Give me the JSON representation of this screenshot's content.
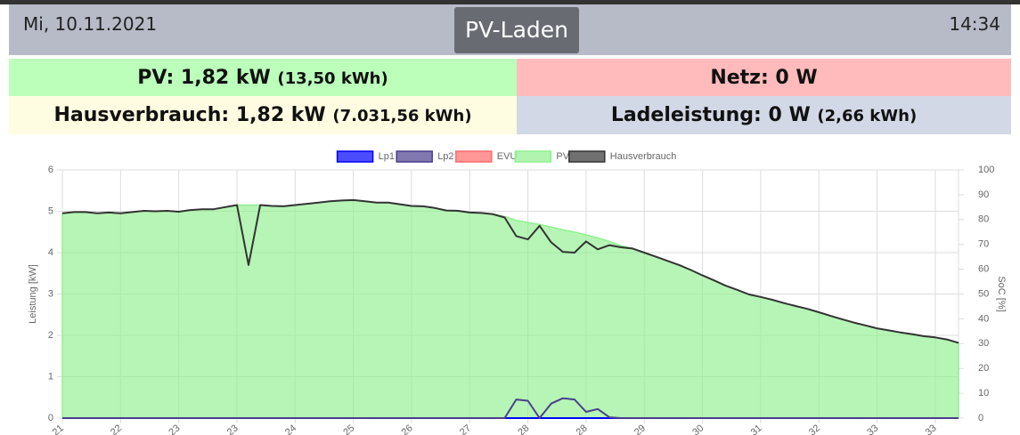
{
  "header": {
    "date": "Mi, 10.11.2021",
    "title": "PV-Laden",
    "time": "14:34"
  },
  "tiles": [
    {
      "label": "PV: 1,82 kW",
      "detail": "(13,50 kWh)",
      "color": "#bbffbb"
    },
    {
      "label": "Netz: 0 W",
      "color": "#ffbbbb"
    },
    {
      "label": "Hausverbrauch: 1,82 kW",
      "detail": "(7.031,56 kWh)",
      "color": "#fffde1"
    },
    {
      "label": "Ladeleistung: 0 W",
      "detail": "(2,66 kWh)",
      "color": "#d2d8e6"
    }
  ],
  "chart_data": {
    "type": "line",
    "y_label": "Leistung [kW]",
    "y2_label": "SoC [%]",
    "ylim": [
      0,
      6
    ],
    "yticks": [
      0,
      1,
      2,
      3,
      4,
      5,
      6
    ],
    "y2lim": [
      0,
      100
    ],
    "y2ticks": [
      0,
      10,
      20,
      30,
      40,
      50,
      60,
      70,
      80,
      90,
      100
    ],
    "grid": true,
    "legend": "top",
    "categories": [
      "21",
      null,
      null,
      null,
      null,
      "22",
      null,
      null,
      null,
      null,
      "23",
      null,
      null,
      null,
      null,
      "23",
      null,
      null,
      null,
      null,
      "24",
      null,
      null,
      null,
      null,
      "25",
      null,
      null,
      null,
      null,
      "26",
      null,
      null,
      null,
      null,
      "27",
      null,
      null,
      null,
      null,
      "28",
      null,
      null,
      null,
      null,
      "28",
      null,
      null,
      null,
      null,
      "29",
      null,
      null,
      null,
      null,
      "30",
      null,
      null,
      null,
      null,
      "31",
      null,
      null,
      null,
      null,
      "32",
      null,
      null,
      null,
      null,
      "33",
      null,
      null,
      null,
      null,
      "33",
      null,
      null
    ],
    "series": [
      {
        "name": "Lp1",
        "color": "#0000ff",
        "values": [
          0,
          0,
          0,
          0,
          0,
          0,
          0,
          0,
          0,
          0,
          0,
          0,
          0,
          0,
          0,
          0,
          0,
          0,
          0,
          0,
          0,
          0,
          0,
          0,
          0,
          0,
          0,
          0,
          0,
          0,
          0,
          0,
          0,
          0,
          0,
          0,
          0,
          0,
          0,
          0,
          0,
          0,
          0,
          0,
          0,
          0,
          0,
          0,
          0,
          0,
          0,
          0,
          0,
          0,
          0,
          0,
          0,
          0,
          0,
          0,
          0,
          0,
          0,
          0,
          0,
          0,
          0,
          0,
          0,
          0,
          0,
          0,
          0,
          0,
          0,
          0,
          0,
          0
        ]
      },
      {
        "name": "Lp2",
        "color": "#4a3f8c",
        "values": [
          0,
          0,
          0,
          0,
          0,
          0,
          0,
          0,
          0,
          0,
          0,
          0,
          0,
          0,
          0,
          0,
          0,
          0,
          0,
          0,
          0,
          0,
          0,
          0,
          0,
          0,
          0,
          0,
          0,
          0,
          0,
          0,
          0,
          0,
          0,
          0,
          0,
          0,
          0,
          0.45,
          0.42,
          0,
          0.35,
          0.48,
          0.45,
          0.15,
          0.22,
          0.02,
          0,
          0,
          0,
          0,
          0,
          0,
          0,
          0,
          0,
          0,
          0,
          0,
          0,
          0,
          0,
          0,
          0,
          0,
          0,
          0,
          0,
          0,
          0,
          0,
          0,
          0,
          0,
          0,
          0,
          0
        ]
      },
      {
        "name": "EVU",
        "color": "#ff6b6b",
        "values": [
          0,
          0,
          0,
          0,
          0,
          0,
          0,
          0,
          0,
          0,
          0,
          0,
          0,
          0,
          0,
          0,
          0,
          0,
          0,
          0,
          0,
          0,
          0,
          0,
          0,
          0,
          0,
          0,
          0,
          0,
          0,
          0,
          0,
          0,
          0,
          0,
          0,
          0,
          0,
          0,
          0,
          0,
          0,
          0,
          0,
          0,
          0,
          0,
          0,
          0,
          0,
          0,
          0,
          0,
          0,
          0,
          0,
          0,
          0,
          0,
          0,
          0,
          0,
          0,
          0,
          0,
          0,
          0,
          0,
          0,
          0,
          0,
          0,
          0,
          0,
          0,
          0,
          0
        ]
      },
      {
        "name": "PV",
        "color": "#8ff08f",
        "fill": true,
        "values": [
          4.95,
          4.98,
          4.98,
          4.95,
          4.97,
          4.95,
          4.98,
          5.01,
          5.0,
          5.01,
          4.99,
          5.03,
          5.05,
          5.05,
          5.1,
          5.15,
          5.15,
          5.15,
          5.13,
          5.12,
          5.15,
          5.18,
          5.21,
          5.24,
          5.26,
          5.27,
          5.24,
          5.21,
          5.21,
          5.17,
          5.13,
          5.12,
          5.08,
          5.02,
          5.01,
          4.97,
          4.96,
          4.93,
          4.87,
          4.78,
          4.73,
          4.68,
          4.62,
          4.55,
          4.5,
          4.43,
          4.36,
          4.27,
          4.17,
          4.1,
          4.0,
          3.9,
          3.8,
          3.7,
          3.58,
          3.45,
          3.33,
          3.2,
          3.1,
          2.99,
          2.93,
          2.86,
          2.78,
          2.71,
          2.64,
          2.56,
          2.47,
          2.39,
          2.31,
          2.24,
          2.17,
          2.12,
          2.07,
          2.03,
          1.98,
          1.95,
          1.9,
          1.82
        ]
      },
      {
        "name": "Hausverbrauch",
        "color": "#333333",
        "values": [
          4.95,
          4.98,
          4.98,
          4.95,
          4.97,
          4.95,
          4.98,
          5.01,
          5.0,
          5.01,
          4.99,
          5.03,
          5.05,
          5.05,
          5.1,
          5.15,
          3.7,
          5.15,
          5.13,
          5.12,
          5.15,
          5.18,
          5.21,
          5.24,
          5.26,
          5.27,
          5.24,
          5.21,
          5.21,
          5.17,
          5.13,
          5.12,
          5.08,
          5.02,
          5.01,
          4.97,
          4.96,
          4.93,
          4.85,
          4.4,
          4.32,
          4.65,
          4.25,
          4.02,
          4.0,
          4.27,
          4.08,
          4.18,
          4.13,
          4.1,
          4.0,
          3.9,
          3.8,
          3.7,
          3.58,
          3.45,
          3.33,
          3.2,
          3.1,
          2.99,
          2.93,
          2.86,
          2.78,
          2.71,
          2.64,
          2.56,
          2.47,
          2.39,
          2.31,
          2.24,
          2.17,
          2.12,
          2.07,
          2.03,
          1.98,
          1.95,
          1.9,
          1.82
        ]
      }
    ]
  }
}
